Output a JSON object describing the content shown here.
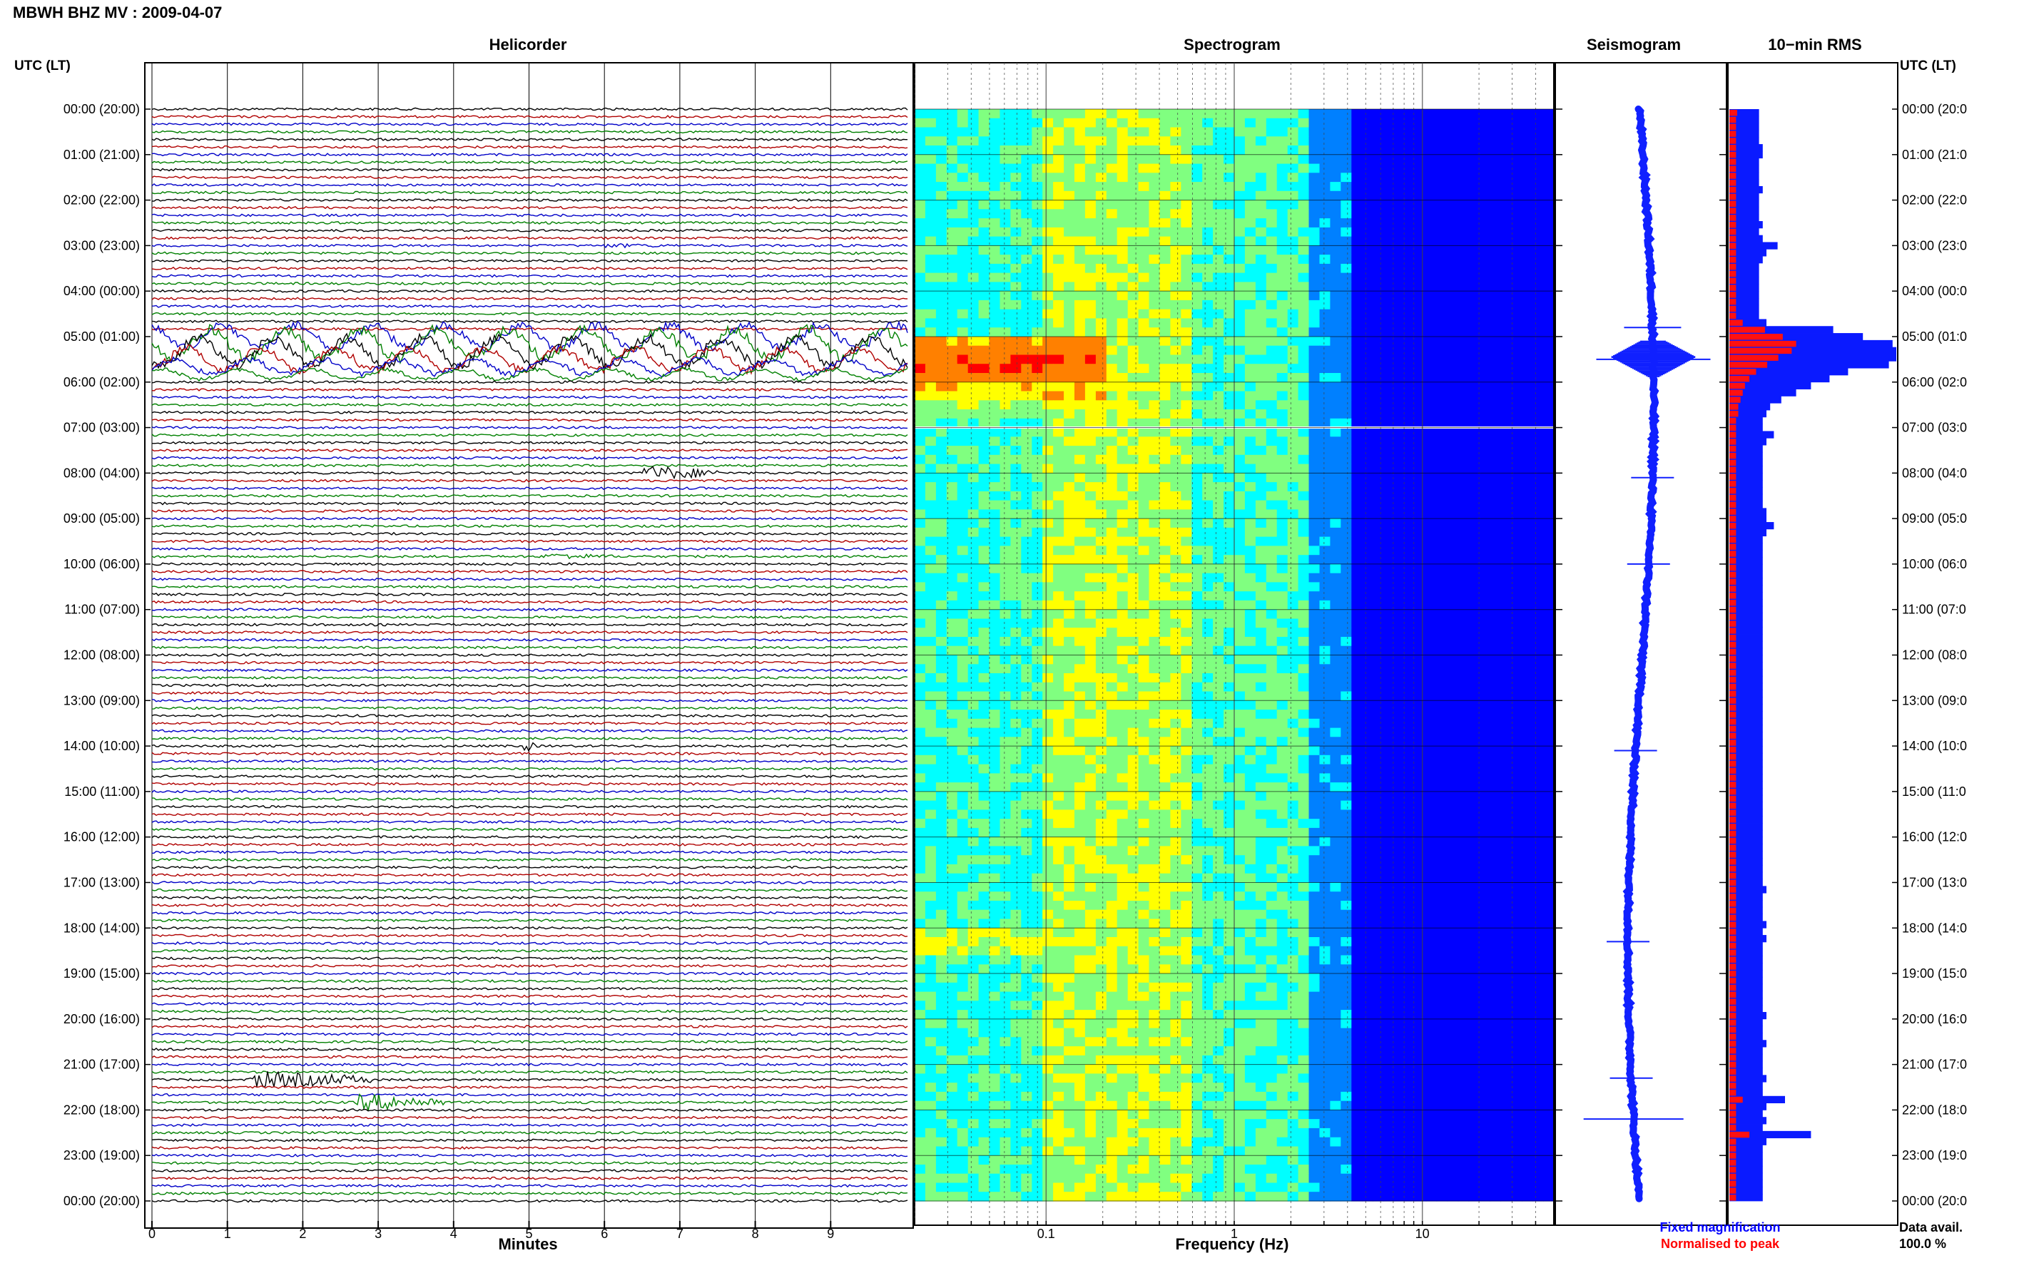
{
  "header": {
    "title": "MBWH BHZ MV : 2009-04-07"
  },
  "panels": {
    "helicorder": "Helicorder",
    "spectrogram": "Spectrogram",
    "seismogram": "Seismogram",
    "rms": "10−min RMS"
  },
  "axes": {
    "left_time_label": "UTC (LT)",
    "right_time_label": "UTC (LT)",
    "minutes_label": "Minutes",
    "frequency_label": "Frequency (Hz)"
  },
  "time_ticks": [
    "00:00 (20:00)",
    "01:00 (21:00)",
    "02:00 (22:00)",
    "03:00 (23:00)",
    "04:00 (00:00)",
    "05:00 (01:00)",
    "06:00 (02:00)",
    "07:00 (03:00)",
    "08:00 (04:00)",
    "09:00 (05:00)",
    "10:00 (06:00)",
    "11:00 (07:00)",
    "12:00 (08:00)",
    "13:00 (09:00)",
    "14:00 (10:00)",
    "15:00 (11:00)",
    "16:00 (12:00)",
    "17:00 (13:00)",
    "18:00 (14:00)",
    "19:00 (15:00)",
    "20:00 (16:00)",
    "21:00 (17:00)",
    "22:00 (18:00)",
    "23:00 (19:00)",
    "00:00 (20:00)"
  ],
  "right_time_ticks": [
    "00:00 (20:0",
    "01:00 (21:0",
    "02:00 (22:0",
    "03:00 (23:0",
    "04:00 (00:0",
    "05:00 (01:0",
    "06:00 (02:0",
    "07:00 (03:0",
    "08:00 (04:0",
    "09:00 (05:0",
    "10:00 (06:0",
    "11:00 (07:0",
    "12:00 (08:0",
    "13:00 (09:0",
    "14:00 (10:0",
    "15:00 (11:0",
    "16:00 (12:0",
    "17:00 (13:0",
    "18:00 (14:0",
    "19:00 (15:0",
    "20:00 (16:0",
    "21:00 (17:0",
    "22:00 (18:0",
    "23:00 (19:0",
    "00:00 (20:0"
  ],
  "minute_ticks": [
    "0",
    "1",
    "2",
    "3",
    "4",
    "5",
    "6",
    "7",
    "8",
    "9"
  ],
  "frequency_ticks": [
    "0.1",
    "1",
    "10"
  ],
  "legend": {
    "fixed": "Fixed magnification",
    "normalised": "Normalised to peak",
    "fixed_color": "#0000ff",
    "normalised_color": "#ff0000"
  },
  "data_avail": {
    "label": "Data avail.",
    "value": "100.0 %"
  },
  "colors": {
    "trace_cycle": [
      "#000000",
      "#b00000",
      "#0000c8",
      "#008000"
    ],
    "rms_fixed": "#0a1aff",
    "rms_normalised": "#ff1010",
    "spectrogram_colormap": [
      "#00008f",
      "#0000ff",
      "#0080ff",
      "#00ffff",
      "#80ff80",
      "#ffff00",
      "#ff8000",
      "#ff0000",
      "#800000"
    ]
  },
  "chart_data": [
    {
      "type": "helicorder",
      "title": "Helicorder",
      "xlabel": "Minutes",
      "xlim": [
        0,
        10
      ],
      "x_ticks": [
        0,
        1,
        2,
        3,
        4,
        5,
        6,
        7,
        8,
        9
      ],
      "traces_per_hour": 6,
      "hours": 24,
      "events": [
        {
          "hour": 2.95,
          "minute": 6.0,
          "duration_min": 1.3,
          "amp": 0.4
        },
        {
          "hour": 4.95,
          "minute": 0.0,
          "duration_min": 10.0,
          "amp": 2.5
        },
        {
          "hour": 5.1,
          "minute": 0.0,
          "duration_min": 10.0,
          "amp": 3.2
        },
        {
          "hour": 5.3,
          "minute": 0.0,
          "duration_min": 10.0,
          "amp": 3.0
        },
        {
          "hour": 5.5,
          "minute": 0.0,
          "duration_min": 10.0,
          "amp": 2.4
        },
        {
          "hour": 5.7,
          "minute": 0.0,
          "duration_min": 10.0,
          "amp": 1.6
        },
        {
          "hour": 5.85,
          "minute": 0.0,
          "duration_min": 10.0,
          "amp": 1.1
        },
        {
          "hour": 8.0,
          "minute": 6.5,
          "duration_min": 1.0,
          "amp": 1.4
        },
        {
          "hour": 9.85,
          "minute": 5.2,
          "duration_min": 1.0,
          "amp": 0.6
        },
        {
          "hour": 14.0,
          "minute": 4.9,
          "duration_min": 0.2,
          "amp": 1.2
        },
        {
          "hour": 21.3,
          "minute": 1.3,
          "duration_min": 1.6,
          "amp": 1.6
        },
        {
          "hour": 21.8,
          "minute": 2.7,
          "duration_min": 1.2,
          "amp": 1.6
        }
      ]
    },
    {
      "type": "heatmap",
      "title": "Spectrogram",
      "xlabel": "Frequency (Hz)",
      "xscale": "log",
      "xlim": [
        0.02,
        50
      ],
      "x_ticks": [
        0.1,
        1,
        10
      ],
      "ylim_hours": [
        0,
        24
      ]
    },
    {
      "type": "line",
      "title": "Seismogram",
      "ylim_hours": [
        0,
        24
      ],
      "spikes_hours": [
        4.8,
        5.5,
        8.1,
        10.0,
        14.1,
        18.3,
        21.3,
        22.2
      ]
    },
    {
      "type": "bar",
      "title": "10−min RMS",
      "orientation": "horizontal",
      "series": [
        {
          "name": "Fixed magnification",
          "values": [
            0.8,
            0.8,
            0.8,
            0.8,
            0.8,
            0.9,
            0.9,
            0.8,
            0.8,
            0.8,
            0.8,
            0.9,
            0.8,
            0.8,
            0.8,
            0.8,
            0.9,
            0.8,
            0.9,
            1.3,
            1.0,
            0.9,
            0.8,
            0.8,
            0.8,
            0.8,
            0.8,
            0.8,
            0.8,
            0.8,
            1.0,
            2.8,
            3.6,
            4.4,
            4.6,
            4.5,
            4.3,
            3.2,
            2.7,
            2.2,
            1.8,
            1.4,
            1.1,
            1.0,
            0.9,
            0.9,
            1.2,
            1.0,
            0.9,
            0.9,
            0.9,
            0.9,
            0.9,
            0.9,
            0.9,
            0.9,
            0.9,
            1.0,
            1.0,
            1.2,
            1.0,
            0.9,
            0.9,
            0.9,
            0.9,
            0.9,
            0.9,
            0.9,
            0.9,
            0.9,
            0.9,
            0.9,
            0.9,
            0.9,
            0.9,
            0.9,
            0.9,
            0.9,
            0.9,
            0.9,
            0.9,
            0.9,
            0.9,
            0.9,
            0.9,
            0.9,
            0.9,
            0.9,
            0.9,
            0.9,
            0.9,
            0.9,
            0.9,
            0.9,
            0.9,
            0.9,
            0.9,
            0.9,
            0.9,
            0.9,
            0.9,
            0.9,
            0.9,
            0.9,
            0.9,
            0.9,
            0.9,
            0.9,
            0.9,
            0.9,
            0.9,
            1.0,
            0.9,
            0.9,
            0.9,
            0.9,
            1.0,
            0.9,
            1.0,
            0.9,
            0.9,
            0.9,
            0.9,
            0.9,
            0.9,
            0.9,
            0.9,
            0.9,
            0.9,
            1.0,
            0.9,
            0.9,
            0.9,
            1.0,
            0.9,
            0.9,
            0.9,
            0.9,
            1.0,
            0.9,
            0.9,
            1.5,
            1.0,
            0.9,
            1.0,
            0.9,
            2.2,
            1.0,
            0.9,
            0.9,
            0.9,
            0.9,
            0.9,
            0.9,
            0.9,
            0.9
          ]
        },
        {
          "name": "Normalised to peak",
          "values": [
            0.35,
            0.3,
            0.3,
            0.3,
            0.3,
            0.3,
            0.3,
            0.3,
            0.3,
            0.3,
            0.3,
            0.3,
            0.3,
            0.3,
            0.3,
            0.3,
            0.3,
            0.3,
            0.3,
            0.3,
            0.3,
            0.3,
            0.3,
            0.3,
            0.3,
            0.3,
            0.3,
            0.3,
            0.3,
            0.3,
            0.6,
            1.6,
            2.4,
            3.0,
            2.8,
            2.2,
            1.7,
            1.2,
            0.9,
            0.7,
            0.6,
            0.5,
            0.4,
            0.4,
            0.3,
            0.3,
            0.3,
            0.3,
            0.3,
            0.3,
            0.3,
            0.3,
            0.3,
            0.3,
            0.3,
            0.3,
            0.3,
            0.3,
            0.3,
            0.3,
            0.3,
            0.3,
            0.3,
            0.3,
            0.3,
            0.3,
            0.3,
            0.3,
            0.3,
            0.3,
            0.3,
            0.3,
            0.3,
            0.3,
            0.3,
            0.3,
            0.3,
            0.3,
            0.3,
            0.3,
            0.3,
            0.3,
            0.3,
            0.3,
            0.3,
            0.3,
            0.3,
            0.3,
            0.3,
            0.3,
            0.3,
            0.3,
            0.3,
            0.3,
            0.3,
            0.3,
            0.3,
            0.3,
            0.3,
            0.3,
            0.3,
            0.3,
            0.3,
            0.3,
            0.3,
            0.3,
            0.3,
            0.3,
            0.3,
            0.3,
            0.3,
            0.3,
            0.3,
            0.3,
            0.3,
            0.3,
            0.3,
            0.3,
            0.3,
            0.3,
            0.3,
            0.3,
            0.3,
            0.3,
            0.3,
            0.3,
            0.3,
            0.3,
            0.3,
            0.3,
            0.3,
            0.3,
            0.3,
            0.3,
            0.3,
            0.3,
            0.3,
            0.3,
            0.3,
            0.3,
            0.3,
            0.6,
            0.3,
            0.3,
            0.3,
            0.3,
            0.9,
            0.3,
            0.3,
            0.3,
            0.3,
            0.3,
            0.3,
            0.3,
            0.3,
            0.3
          ]
        }
      ]
    }
  ]
}
